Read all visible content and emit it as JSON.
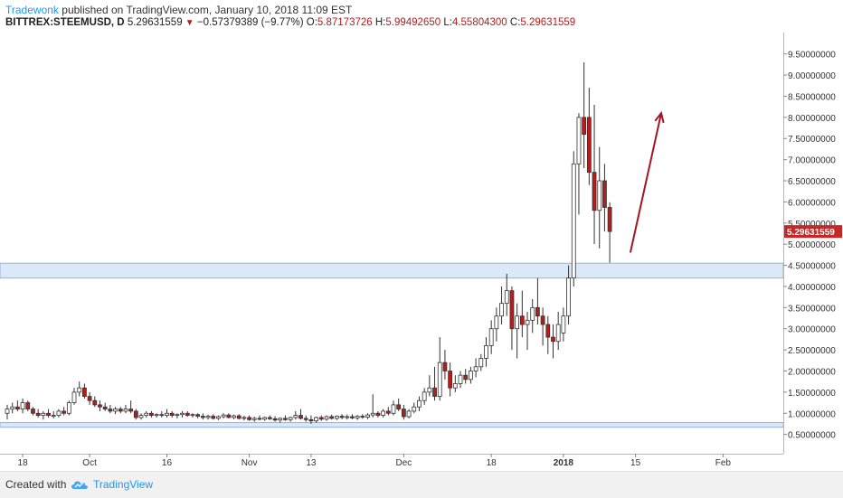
{
  "header": {
    "author": "Tradewonk",
    "published": "published on TradingView.com, January 10, 2018 11:09 EST",
    "symbol": "BITTREX:STEEMUSD, D",
    "last": "5.29631559",
    "change": "−0.57379389 (−9.77%)",
    "open_label": "O:",
    "open": "5.87173726",
    "high_label": "H:",
    "high": "5.99492650",
    "low_label": "L:",
    "low": "4.55804300",
    "close_label": "C:",
    "close": "5.29631559"
  },
  "footer": {
    "created_with": "Created with",
    "brand": "TradingView"
  },
  "colors": {
    "up_candle": "#ffffff",
    "down_candle": "#b71c1c",
    "wick": "#333333",
    "zone_fill": "#dbe8f7",
    "zone_border": "#90b4e3",
    "arrow": "#a31621",
    "price_label_bg": "#c62828",
    "accent": "#2196f3"
  },
  "chart_data": {
    "type": "candlestick",
    "title": "BITTREX:STEEMUSD, D",
    "xlabel": "",
    "ylabel": "",
    "ylim": [
      0.3,
      9.75
    ],
    "xlim": [
      "2017-09-15",
      "2018-02-12"
    ],
    "yticks": [
      "9.50000000",
      "9.00000000",
      "8.50000000",
      "8.00000000",
      "7.50000000",
      "7.00000000",
      "6.50000000",
      "6.00000000",
      "5.50000000",
      "5.00000000",
      "4.50000000",
      "4.00000000",
      "3.50000000",
      "3.00000000",
      "2.50000000",
      "2.00000000",
      "1.50000000",
      "1.00000000",
      "0.50000000"
    ],
    "xticks": [
      {
        "label": "18",
        "date": "2017-09-18"
      },
      {
        "label": "Oct",
        "date": "2017-10-01"
      },
      {
        "label": "16",
        "date": "2017-10-16"
      },
      {
        "label": "Nov",
        "date": "2017-11-01"
      },
      {
        "label": "13",
        "date": "2017-11-13"
      },
      {
        "label": "Dec",
        "date": "2017-12-01"
      },
      {
        "label": "18",
        "date": "2017-12-18"
      },
      {
        "label": "2018",
        "date": "2018-01-01"
      },
      {
        "label": "15",
        "date": "2018-01-15"
      },
      {
        "label": "Feb",
        "date": "2018-02-01"
      }
    ],
    "last_price_label": "5.29631559",
    "zones": [
      {
        "from": 4.2,
        "to": 4.55
      },
      {
        "from": 0.67,
        "to": 0.78
      }
    ],
    "arrow": {
      "from": [
        "2018-01-14",
        4.8
      ],
      "to": [
        "2018-01-20",
        8.1
      ]
    },
    "candles": [
      {
        "date": "2017-09-15",
        "o": 1.0,
        "h": 1.2,
        "l": 0.85,
        "c": 1.1
      },
      {
        "date": "2017-09-16",
        "o": 1.1,
        "h": 1.25,
        "l": 1.0,
        "c": 1.15
      },
      {
        "date": "2017-09-17",
        "o": 1.15,
        "h": 1.3,
        "l": 1.05,
        "c": 1.1
      },
      {
        "date": "2017-09-18",
        "o": 1.1,
        "h": 1.35,
        "l": 1.0,
        "c": 1.25
      },
      {
        "date": "2017-09-19",
        "o": 1.25,
        "h": 1.3,
        "l": 1.05,
        "c": 1.1
      },
      {
        "date": "2017-09-20",
        "o": 1.1,
        "h": 1.15,
        "l": 0.95,
        "c": 1.0
      },
      {
        "date": "2017-09-21",
        "o": 1.0,
        "h": 1.1,
        "l": 0.9,
        "c": 0.95
      },
      {
        "date": "2017-09-22",
        "o": 0.95,
        "h": 1.05,
        "l": 0.85,
        "c": 1.0
      },
      {
        "date": "2017-09-23",
        "o": 1.0,
        "h": 1.1,
        "l": 0.9,
        "c": 0.95
      },
      {
        "date": "2017-09-24",
        "o": 0.95,
        "h": 1.05,
        "l": 0.88,
        "c": 0.95
      },
      {
        "date": "2017-09-25",
        "o": 0.95,
        "h": 1.1,
        "l": 0.9,
        "c": 1.05
      },
      {
        "date": "2017-09-26",
        "o": 1.05,
        "h": 1.15,
        "l": 0.95,
        "c": 1.0
      },
      {
        "date": "2017-09-27",
        "o": 1.0,
        "h": 1.3,
        "l": 0.95,
        "c": 1.25
      },
      {
        "date": "2017-09-28",
        "o": 1.25,
        "h": 1.6,
        "l": 1.2,
        "c": 1.5
      },
      {
        "date": "2017-09-29",
        "o": 1.5,
        "h": 1.75,
        "l": 1.4,
        "c": 1.6
      },
      {
        "date": "2017-09-30",
        "o": 1.6,
        "h": 1.7,
        "l": 1.35,
        "c": 1.4
      },
      {
        "date": "2017-10-01",
        "o": 1.4,
        "h": 1.5,
        "l": 1.2,
        "c": 1.3
      },
      {
        "date": "2017-10-02",
        "o": 1.3,
        "h": 1.4,
        "l": 1.15,
        "c": 1.2
      },
      {
        "date": "2017-10-03",
        "o": 1.2,
        "h": 1.3,
        "l": 1.05,
        "c": 1.15
      },
      {
        "date": "2017-10-04",
        "o": 1.15,
        "h": 1.25,
        "l": 1.05,
        "c": 1.1
      },
      {
        "date": "2017-10-05",
        "o": 1.1,
        "h": 1.2,
        "l": 1.0,
        "c": 1.05
      },
      {
        "date": "2017-10-06",
        "o": 1.05,
        "h": 1.15,
        "l": 0.98,
        "c": 1.1
      },
      {
        "date": "2017-10-07",
        "o": 1.1,
        "h": 1.15,
        "l": 1.0,
        "c": 1.05
      },
      {
        "date": "2017-10-08",
        "o": 1.05,
        "h": 1.2,
        "l": 1.0,
        "c": 1.1
      },
      {
        "date": "2017-10-09",
        "o": 1.1,
        "h": 1.3,
        "l": 1.0,
        "c": 1.05
      },
      {
        "date": "2017-10-10",
        "o": 1.05,
        "h": 1.1,
        "l": 0.85,
        "c": 0.9
      },
      {
        "date": "2017-10-11",
        "o": 0.9,
        "h": 1.0,
        "l": 0.85,
        "c": 0.95
      },
      {
        "date": "2017-10-12",
        "o": 0.95,
        "h": 1.05,
        "l": 0.9,
        "c": 1.0
      },
      {
        "date": "2017-10-13",
        "o": 1.0,
        "h": 1.05,
        "l": 0.9,
        "c": 0.95
      },
      {
        "date": "2017-10-14",
        "o": 0.95,
        "h": 1.0,
        "l": 0.9,
        "c": 0.97
      },
      {
        "date": "2017-10-15",
        "o": 0.97,
        "h": 1.05,
        "l": 0.9,
        "c": 0.95
      },
      {
        "date": "2017-10-16",
        "o": 0.95,
        "h": 1.1,
        "l": 0.9,
        "c": 1.0
      },
      {
        "date": "2017-10-17",
        "o": 1.0,
        "h": 1.05,
        "l": 0.9,
        "c": 0.95
      },
      {
        "date": "2017-10-18",
        "o": 0.95,
        "h": 1.0,
        "l": 0.88,
        "c": 0.97
      },
      {
        "date": "2017-10-19",
        "o": 0.97,
        "h": 1.05,
        "l": 0.9,
        "c": 1.0
      },
      {
        "date": "2017-10-20",
        "o": 1.0,
        "h": 1.05,
        "l": 0.92,
        "c": 0.95
      },
      {
        "date": "2017-10-21",
        "o": 0.95,
        "h": 1.0,
        "l": 0.9,
        "c": 0.97
      },
      {
        "date": "2017-10-22",
        "o": 0.97,
        "h": 1.0,
        "l": 0.88,
        "c": 0.93
      },
      {
        "date": "2017-10-23",
        "o": 0.93,
        "h": 1.0,
        "l": 0.85,
        "c": 0.9
      },
      {
        "date": "2017-10-24",
        "o": 0.9,
        "h": 0.97,
        "l": 0.85,
        "c": 0.93
      },
      {
        "date": "2017-10-25",
        "o": 0.93,
        "h": 0.98,
        "l": 0.85,
        "c": 0.88
      },
      {
        "date": "2017-10-26",
        "o": 0.88,
        "h": 0.95,
        "l": 0.84,
        "c": 0.92
      },
      {
        "date": "2017-10-27",
        "o": 0.92,
        "h": 1.0,
        "l": 0.88,
        "c": 0.96
      },
      {
        "date": "2017-10-28",
        "o": 0.96,
        "h": 1.0,
        "l": 0.88,
        "c": 0.9
      },
      {
        "date": "2017-10-29",
        "o": 0.9,
        "h": 0.97,
        "l": 0.86,
        "c": 0.94
      },
      {
        "date": "2017-10-30",
        "o": 0.94,
        "h": 0.98,
        "l": 0.85,
        "c": 0.88
      },
      {
        "date": "2017-10-31",
        "o": 0.88,
        "h": 0.94,
        "l": 0.83,
        "c": 0.9
      },
      {
        "date": "2017-11-01",
        "o": 0.9,
        "h": 0.95,
        "l": 0.82,
        "c": 0.85
      },
      {
        "date": "2017-11-02",
        "o": 0.85,
        "h": 0.92,
        "l": 0.8,
        "c": 0.88
      },
      {
        "date": "2017-11-03",
        "o": 0.88,
        "h": 0.95,
        "l": 0.83,
        "c": 0.86
      },
      {
        "date": "2017-11-04",
        "o": 0.86,
        "h": 0.92,
        "l": 0.82,
        "c": 0.9
      },
      {
        "date": "2017-11-05",
        "o": 0.9,
        "h": 0.95,
        "l": 0.84,
        "c": 0.87
      },
      {
        "date": "2017-11-06",
        "o": 0.87,
        "h": 0.93,
        "l": 0.8,
        "c": 0.84
      },
      {
        "date": "2017-11-07",
        "o": 0.84,
        "h": 0.9,
        "l": 0.78,
        "c": 0.88
      },
      {
        "date": "2017-11-08",
        "o": 0.88,
        "h": 0.95,
        "l": 0.82,
        "c": 0.85
      },
      {
        "date": "2017-11-09",
        "o": 0.85,
        "h": 0.92,
        "l": 0.8,
        "c": 0.9
      },
      {
        "date": "2017-11-10",
        "o": 0.9,
        "h": 1.05,
        "l": 0.85,
        "c": 0.95
      },
      {
        "date": "2017-11-11",
        "o": 0.95,
        "h": 1.1,
        "l": 0.85,
        "c": 0.88
      },
      {
        "date": "2017-11-12",
        "o": 0.88,
        "h": 0.95,
        "l": 0.8,
        "c": 0.85
      },
      {
        "date": "2017-11-13",
        "o": 0.85,
        "h": 0.95,
        "l": 0.75,
        "c": 0.82
      },
      {
        "date": "2017-11-14",
        "o": 0.82,
        "h": 0.92,
        "l": 0.78,
        "c": 0.9
      },
      {
        "date": "2017-11-15",
        "o": 0.9,
        "h": 0.95,
        "l": 0.82,
        "c": 0.86
      },
      {
        "date": "2017-11-16",
        "o": 0.86,
        "h": 0.95,
        "l": 0.82,
        "c": 0.92
      },
      {
        "date": "2017-11-17",
        "o": 0.92,
        "h": 0.97,
        "l": 0.85,
        "c": 0.88
      },
      {
        "date": "2017-11-18",
        "o": 0.88,
        "h": 0.95,
        "l": 0.84,
        "c": 0.93
      },
      {
        "date": "2017-11-19",
        "o": 0.93,
        "h": 0.98,
        "l": 0.86,
        "c": 0.9
      },
      {
        "date": "2017-11-20",
        "o": 0.9,
        "h": 0.97,
        "l": 0.85,
        "c": 0.92
      },
      {
        "date": "2017-11-21",
        "o": 0.92,
        "h": 0.98,
        "l": 0.86,
        "c": 0.89
      },
      {
        "date": "2017-11-22",
        "o": 0.89,
        "h": 0.96,
        "l": 0.84,
        "c": 0.93
      },
      {
        "date": "2017-11-23",
        "o": 0.93,
        "h": 0.98,
        "l": 0.87,
        "c": 0.91
      },
      {
        "date": "2017-11-24",
        "o": 0.91,
        "h": 1.0,
        "l": 0.86,
        "c": 0.96
      },
      {
        "date": "2017-11-25",
        "o": 0.96,
        "h": 1.45,
        "l": 0.9,
        "c": 1.0
      },
      {
        "date": "2017-11-26",
        "o": 1.0,
        "h": 1.05,
        "l": 0.9,
        "c": 0.95
      },
      {
        "date": "2017-11-27",
        "o": 0.95,
        "h": 1.1,
        "l": 0.9,
        "c": 1.05
      },
      {
        "date": "2017-11-28",
        "o": 1.05,
        "h": 1.15,
        "l": 0.95,
        "c": 1.0
      },
      {
        "date": "2017-11-29",
        "o": 1.0,
        "h": 1.3,
        "l": 0.95,
        "c": 1.2
      },
      {
        "date": "2017-11-30",
        "o": 1.2,
        "h": 1.35,
        "l": 1.05,
        "c": 1.1
      },
      {
        "date": "2017-12-01",
        "o": 1.1,
        "h": 1.2,
        "l": 0.85,
        "c": 0.92
      },
      {
        "date": "2017-12-02",
        "o": 0.92,
        "h": 1.1,
        "l": 0.88,
        "c": 1.05
      },
      {
        "date": "2017-12-03",
        "o": 1.05,
        "h": 1.25,
        "l": 1.0,
        "c": 1.15
      },
      {
        "date": "2017-12-04",
        "o": 1.15,
        "h": 1.4,
        "l": 1.05,
        "c": 1.3
      },
      {
        "date": "2017-12-05",
        "o": 1.3,
        "h": 1.6,
        "l": 1.2,
        "c": 1.5
      },
      {
        "date": "2017-12-06",
        "o": 1.5,
        "h": 1.9,
        "l": 1.4,
        "c": 1.6
      },
      {
        "date": "2017-12-07",
        "o": 1.6,
        "h": 2.1,
        "l": 1.3,
        "c": 1.4
      },
      {
        "date": "2017-12-08",
        "o": 1.4,
        "h": 2.8,
        "l": 1.3,
        "c": 2.2
      },
      {
        "date": "2017-12-09",
        "o": 2.2,
        "h": 2.5,
        "l": 1.8,
        "c": 2.0
      },
      {
        "date": "2017-12-10",
        "o": 2.0,
        "h": 2.2,
        "l": 1.4,
        "c": 1.6
      },
      {
        "date": "2017-12-11",
        "o": 1.6,
        "h": 1.9,
        "l": 1.5,
        "c": 1.7
      },
      {
        "date": "2017-12-12",
        "o": 1.7,
        "h": 2.0,
        "l": 1.6,
        "c": 1.9
      },
      {
        "date": "2017-12-13",
        "o": 1.9,
        "h": 2.05,
        "l": 1.7,
        "c": 1.8
      },
      {
        "date": "2017-12-14",
        "o": 1.8,
        "h": 2.1,
        "l": 1.7,
        "c": 2.0
      },
      {
        "date": "2017-12-15",
        "o": 2.0,
        "h": 2.3,
        "l": 1.85,
        "c": 2.1
      },
      {
        "date": "2017-12-16",
        "o": 2.1,
        "h": 2.4,
        "l": 2.0,
        "c": 2.3
      },
      {
        "date": "2017-12-17",
        "o": 2.3,
        "h": 2.8,
        "l": 2.1,
        "c": 2.6
      },
      {
        "date": "2017-12-18",
        "o": 2.6,
        "h": 3.2,
        "l": 2.4,
        "c": 3.0
      },
      {
        "date": "2017-12-19",
        "o": 3.0,
        "h": 3.5,
        "l": 2.7,
        "c": 3.3
      },
      {
        "date": "2017-12-20",
        "o": 3.3,
        "h": 4.0,
        "l": 3.1,
        "c": 3.6
      },
      {
        "date": "2017-12-21",
        "o": 3.6,
        "h": 4.3,
        "l": 3.3,
        "c": 3.9
      },
      {
        "date": "2017-12-22",
        "o": 3.9,
        "h": 4.0,
        "l": 2.5,
        "c": 3.0
      },
      {
        "date": "2017-12-23",
        "o": 3.0,
        "h": 3.6,
        "l": 2.3,
        "c": 3.3
      },
      {
        "date": "2017-12-24",
        "o": 3.3,
        "h": 3.9,
        "l": 2.8,
        "c": 3.1
      },
      {
        "date": "2017-12-25",
        "o": 3.1,
        "h": 3.4,
        "l": 2.5,
        "c": 3.2
      },
      {
        "date": "2017-12-26",
        "o": 3.2,
        "h": 3.7,
        "l": 2.9,
        "c": 3.5
      },
      {
        "date": "2017-12-27",
        "o": 3.5,
        "h": 4.2,
        "l": 3.1,
        "c": 3.3
      },
      {
        "date": "2017-12-28",
        "o": 3.3,
        "h": 3.5,
        "l": 2.6,
        "c": 3.1
      },
      {
        "date": "2017-12-29",
        "o": 3.1,
        "h": 3.3,
        "l": 2.4,
        "c": 2.8
      },
      {
        "date": "2017-12-30",
        "o": 2.8,
        "h": 3.1,
        "l": 2.3,
        "c": 2.7
      },
      {
        "date": "2017-12-31",
        "o": 2.7,
        "h": 3.4,
        "l": 2.5,
        "c": 3.1
      },
      {
        "date": "2018-01-01",
        "o": 2.9,
        "h": 3.5,
        "l": 2.7,
        "c": 3.3
      },
      {
        "date": "2018-01-02",
        "o": 3.3,
        "h": 4.5,
        "l": 3.1,
        "c": 4.2
      },
      {
        "date": "2018-01-03",
        "o": 4.2,
        "h": 7.2,
        "l": 4.0,
        "c": 6.9
      },
      {
        "date": "2018-01-04",
        "o": 6.9,
        "h": 8.1,
        "l": 5.7,
        "c": 8.0
      },
      {
        "date": "2018-01-05",
        "o": 8.0,
        "h": 9.3,
        "l": 6.8,
        "c": 7.6
      },
      {
        "date": "2018-01-06",
        "o": 8.0,
        "h": 8.7,
        "l": 6.4,
        "c": 6.7
      },
      {
        "date": "2018-01-07",
        "o": 6.7,
        "h": 8.3,
        "l": 5.0,
        "c": 5.8
      },
      {
        "date": "2018-01-08",
        "o": 5.8,
        "h": 7.3,
        "l": 4.9,
        "c": 6.5
      },
      {
        "date": "2018-01-09",
        "o": 6.5,
        "h": 6.9,
        "l": 5.3,
        "c": 5.87
      },
      {
        "date": "2018-01-10",
        "o": 5.87,
        "h": 5.99,
        "l": 4.56,
        "c": 5.3
      }
    ]
  }
}
